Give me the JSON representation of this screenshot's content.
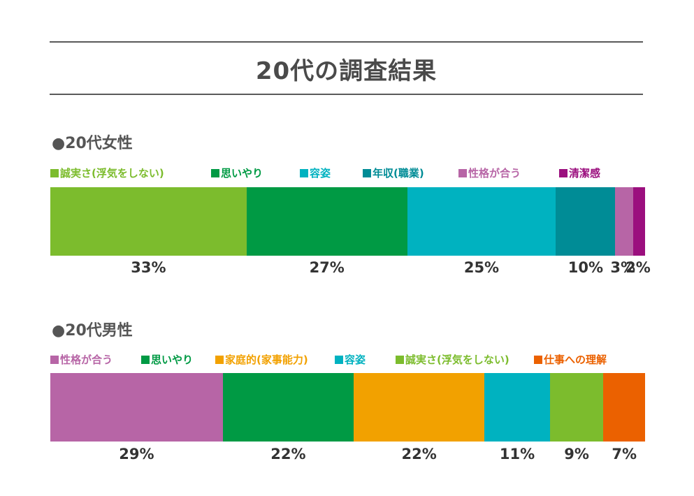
{
  "title": "20代の調査結果",
  "chart_data": [
    {
      "type": "bar",
      "orientation": "horizontal-stacked-100",
      "title": "●20代女性",
      "categories": [
        "誠実さ(浮気をしない)",
        "思いやり",
        "容姿",
        "年収(職業)",
        "性格が合う",
        "清潔感"
      ],
      "values": [
        33,
        27,
        25,
        10,
        3,
        2
      ],
      "labels": [
        "33%",
        "27%",
        "25%",
        "10%",
        "3%",
        "2%"
      ],
      "colors": [
        "#7cbc2d",
        "#009a44",
        "#00b2c0",
        "#008c96",
        "#b765a6",
        "#9b0f7e"
      ],
      "legend": "top"
    },
    {
      "type": "bar",
      "orientation": "horizontal-stacked-100",
      "title": "●20代男性",
      "categories": [
        "性格が合う",
        "思いやり",
        "家庭的(家事能力)",
        "容姿",
        "誠実さ(浮気をしない)",
        "仕事への理解"
      ],
      "values": [
        29,
        22,
        22,
        11,
        9,
        7
      ],
      "labels": [
        "29%",
        "22%",
        "22%",
        "11%",
        "9%",
        "7%"
      ],
      "colors": [
        "#b765a6",
        "#009a44",
        "#f2a100",
        "#00b2c0",
        "#7cbc2d",
        "#eb6100"
      ],
      "legend": "top"
    }
  ]
}
